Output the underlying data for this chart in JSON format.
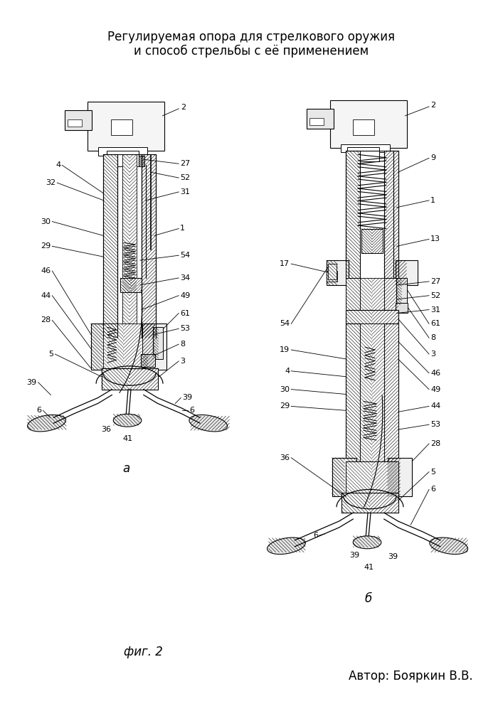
{
  "title_line1": "Регулируемая опора для стрелкового оружия",
  "title_line2": "и способ стрельбы с её применением",
  "fig_label": "фиг. 2",
  "author": "Автор: Бояркин В.В.",
  "label_a": "а",
  "label_b": "б",
  "bg_color": "#ffffff"
}
